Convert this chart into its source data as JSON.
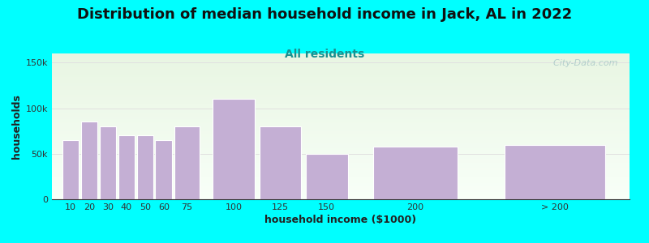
{
  "title": "Distribution of median household income in Jack, AL in 2022",
  "subtitle": "All residents",
  "xlabel": "household income ($1000)",
  "ylabel": "households",
  "bar_labels": [
    "10",
    "20",
    "30",
    "40",
    "50",
    "60",
    "75",
    "100",
    "125",
    "150",
    "200",
    "> 200"
  ],
  "bar_values": [
    65000,
    85000,
    80000,
    70000,
    70000,
    65000,
    80000,
    110000,
    80000,
    50000,
    58000,
    60000
  ],
  "bar_widths": [
    10,
    10,
    10,
    10,
    10,
    10,
    15,
    25,
    25,
    25,
    50,
    60
  ],
  "bar_lefts": [
    5,
    15,
    25,
    35,
    45,
    55,
    65,
    85,
    110,
    135,
    170,
    240
  ],
  "bar_color": "#c4afd4",
  "bar_edge_color": "#ffffff",
  "ylim": [
    0,
    160000
  ],
  "yticks": [
    0,
    50000,
    100000,
    150000
  ],
  "ytick_labels": [
    "0",
    "50k",
    "100k",
    "150k"
  ],
  "bg_color": "#00ffff",
  "plot_bg_top": "#e8f5e2",
  "plot_bg_bottom": "#f8fff8",
  "title_fontsize": 13,
  "subtitle_fontsize": 10,
  "subtitle_color": "#1a9090",
  "axis_label_fontsize": 9,
  "tick_fontsize": 8,
  "watermark_text": "  City-Data.com",
  "watermark_color": "#aac8c8",
  "grid_color": "#e0e0e0",
  "xlim_left": 0,
  "xlim_right": 310
}
